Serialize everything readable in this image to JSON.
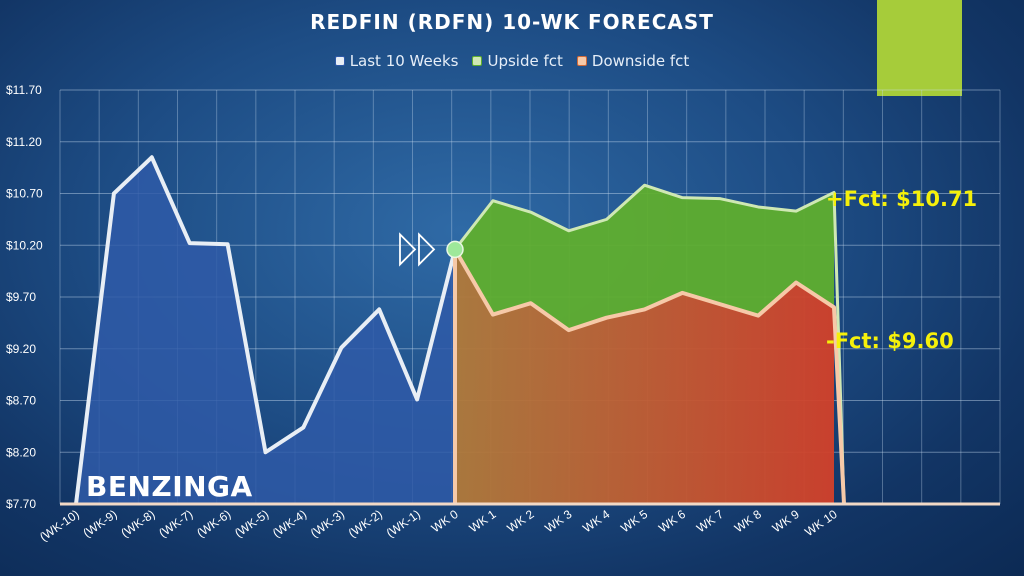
{
  "chart_data": {
    "type": "area",
    "title": "REDFIN (RDFN) 10-WK FORECAST",
    "legend_position": "top-center",
    "ylim": [
      7.7,
      11.7
    ],
    "grid": true,
    "y_ticks": [
      "$7.70",
      "$8.20",
      "$8.70",
      "$9.20",
      "$9.70",
      "$10.20",
      "$10.70",
      "$11.20",
      "$11.70"
    ],
    "y_tick_values": [
      7.7,
      8.2,
      8.7,
      9.2,
      9.7,
      10.2,
      10.7,
      11.2,
      11.7
    ],
    "categories": [
      "(WK-10)",
      "(WK-9)",
      "(WK-8)",
      "(WK-7)",
      "(WK-6)",
      "(WK-5)",
      "(WK-4)",
      "(WK-3)",
      "(WK-2)",
      "(WK-1)",
      "WK 0",
      "WK 1",
      "WK 2",
      "WK 3",
      "WK 4",
      "WK 5",
      "WK 6",
      "WK 7",
      "WK 8",
      "WK 9",
      "WK 10"
    ],
    "series": [
      {
        "name": "Last 10 Weeks",
        "color": "#2f5aa8",
        "line_color": "#e8eef5",
        "values": [
          7.7,
          10.7,
          11.05,
          10.22,
          10.21,
          8.2,
          8.44,
          9.21,
          9.58,
          8.71,
          10.16,
          null,
          null,
          null,
          null,
          null,
          null,
          null,
          null,
          null,
          null
        ]
      },
      {
        "name": "Upside fct",
        "color": "#5fae2e",
        "line_color": "#cfe8b4",
        "values": [
          null,
          null,
          null,
          null,
          null,
          null,
          null,
          null,
          null,
          null,
          10.16,
          10.63,
          10.52,
          10.34,
          10.45,
          10.78,
          10.66,
          10.65,
          10.57,
          10.53,
          10.71
        ]
      },
      {
        "name": "Downside fct",
        "color": "#d06a38",
        "line_color": "#f6c9a8",
        "values": [
          null,
          null,
          null,
          null,
          null,
          null,
          null,
          null,
          null,
          null,
          10.16,
          9.53,
          9.64,
          9.38,
          9.5,
          9.58,
          9.74,
          9.63,
          9.52,
          9.84,
          9.6
        ]
      }
    ],
    "annotations": {
      "upside": "+Fct: $10.71",
      "downside": "-Fct: $9.60",
      "brand": "BENZINGA"
    },
    "accent_color": "#a6cc3a"
  }
}
